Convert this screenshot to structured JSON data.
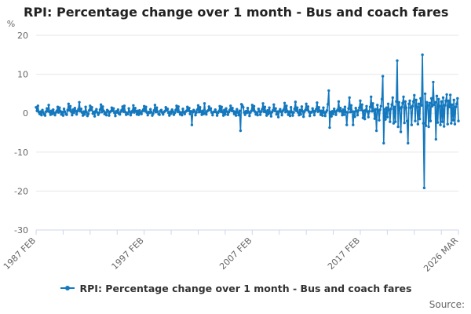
{
  "page": {
    "title": "RPI: Percentage change over 1 month - Bus and coach fares"
  },
  "legend": {
    "label": "RPI: Percentage change over 1 month - Bus and coach fares",
    "marker_icon": "line-with-dot"
  },
  "footer": {
    "source": "Source:"
  },
  "chart_data": {
    "type": "line",
    "title": "RPI: Percentage change over 1 month - Bus and coach fares",
    "unit_label": "%",
    "series_name": "RPI: Percentage change over 1 month - Bus and coach fares",
    "line_color": "#1478be",
    "grid_color": "#e6e6e6",
    "axis_color": "#ccd6eb",
    "label_color": "#666666",
    "ylim": [
      -30,
      20
    ],
    "y_ticks": [
      20,
      10,
      0,
      -10,
      -20,
      -30
    ],
    "x_start": "1987 FEB",
    "x_end": "2026 MAR",
    "x_ticks": [
      {
        "label": "1987 FEB",
        "month_index": 0
      },
      {
        "label": "1997 FEB",
        "month_index": 120
      },
      {
        "label": "2007 FEB",
        "month_index": 240
      },
      {
        "label": "2017 FEB",
        "month_index": 360
      },
      {
        "label": "2026 MAR",
        "month_index": 469
      }
    ],
    "minor_tick_interval_months": 30,
    "grid_on": true,
    "legend_position": "bottom",
    "values_start": {
      "year": 1987,
      "month": 2
    },
    "values_end": {
      "year": 2026,
      "month": 3
    },
    "values": [
      1.5,
      0.6,
      1.9,
      0.3,
      -0.2,
      0.4,
      -0.5,
      0.8,
      0.2,
      -0.3,
      -0.6,
      0.4,
      1.2,
      0.5,
      2.1,
      0.3,
      -0.4,
      0.6,
      -0.2,
      0.9,
      0.1,
      -0.5,
      0.2,
      0.6,
      1.6,
      0.2,
      1.4,
      0.5,
      -0.3,
      0.3,
      -0.6,
      1.1,
      0.4,
      -0.2,
      -0.4,
      0.8,
      2.4,
      0.7,
      1.8,
      0.4,
      -0.5,
      0.9,
      0.1,
      1.3,
      0.6,
      -0.3,
      0.5,
      1.0,
      2.8,
      0.5,
      1.1,
      0.2,
      -0.6,
      0.4,
      -0.3,
      1.6,
      0.3,
      -0.7,
      -0.2,
      0.7,
      1.9,
      0.8,
      1.5,
      -0.1,
      0.3,
      -0.8,
      0.5,
      1.0,
      0.2,
      -0.4,
      0.1,
      0.9,
      2.2,
      0.3,
      1.7,
      0.6,
      -0.2,
      0.2,
      -0.5,
      0.8,
      0.5,
      -0.6,
      0.3,
      0.5,
      1.4,
      0.6,
      1.2,
      0.1,
      -0.7,
      0.5,
      0.2,
      0.9,
      -0.1,
      -0.3,
      0.4,
      0.8,
      1.7,
      0.4,
      1.9,
      0.3,
      -0.4,
      0.1,
      -0.2,
      1.2,
      0.4,
      -0.5,
      0.2,
      0.6,
      2.0,
      0.2,
      1.3,
      0.5,
      -0.3,
      0.6,
      -0.4,
      0.7,
      0.1,
      -0.2,
      0.5,
      0.9,
      1.8,
      0.5,
      1.6,
      0.2,
      -0.5,
      0.3,
      0.1,
      1.0,
      0.3,
      -0.6,
      -0.1,
      0.7,
      2.1,
      0.3,
      1.4,
      0.4,
      -0.2,
      -0.4,
      0.6,
      0.8,
      0.2,
      -0.3,
      0.3,
      0.5,
      1.5,
      0.7,
      1.1,
      0.1,
      -0.6,
      0.4,
      -0.1,
      0.9,
      0.4,
      -0.4,
      0.1,
      0.8,
      1.9,
      0.4,
      1.7,
      0.3,
      -0.3,
      0.2,
      -0.5,
      1.1,
      0.2,
      -0.2,
      0.4,
      0.6,
      1.6,
      0.6,
      1.3,
      -0.2,
      0.5,
      -3.0,
      0.3,
      0.8,
      0.5,
      -0.5,
      0.2,
      0.9,
      2.0,
      0.3,
      1.5,
      0.4,
      -0.4,
      0.6,
      -0.2,
      2.5,
      0.1,
      -0.3,
      0.5,
      0.7,
      1.7,
      0.8,
      1.2,
      0.2,
      -0.5,
      0.3,
      0.4,
      0.9,
      0.3,
      -0.6,
      0.1,
      0.5,
      1.8,
      0.4,
      1.6,
      0.3,
      -0.6,
      0.8,
      -0.3,
      1.2,
      0.4,
      -0.4,
      0.3,
      0.8,
      1.9,
      0.6,
      1.3,
      0.5,
      -0.2,
      0.4,
      -0.6,
      1.0,
      0.2,
      -0.5,
      0.6,
      -4.5,
      2.3,
      2.0,
      1.5,
      0.2,
      -0.4,
      0.5,
      0.1,
      1.3,
      0.3,
      -0.7,
      0.2,
      0.6,
      2.1,
      0.7,
      1.8,
      0.4,
      -0.3,
      0.2,
      -0.5,
      1.1,
      0.5,
      -0.4,
      0.4,
      1.0,
      2.5,
      0.4,
      1.6,
      0.3,
      -0.6,
      0.7,
      -0.2,
      1.4,
      0.2,
      -0.8,
      0.3,
      0.7,
      2.2,
      0.6,
      1.2,
      -0.3,
      0.4,
      -1.0,
      0.5,
      1.0,
      0.4,
      -0.5,
      0.6,
      0.9,
      2.6,
      0.3,
      1.9,
      0.5,
      -0.4,
      0.4,
      -0.7,
      1.5,
      0.3,
      -0.6,
      0.2,
      1.1,
      2.9,
      0.6,
      1.4,
      0.2,
      -0.5,
      0.8,
      -0.3,
      1.7,
      0.5,
      -0.9,
      0.4,
      0.8,
      2.4,
      0.8,
      1.7,
      0.4,
      -0.7,
      0.3,
      0.2,
      1.2,
      0.6,
      -0.5,
      0.5,
      1.0,
      2.7,
      0.4,
      1.5,
      0.6,
      -0.4,
      0.6,
      -0.6,
      1.4,
      0.2,
      -0.7,
      0.3,
      0.7,
      2.3,
      5.8,
      -3.7,
      0.3,
      -0.8,
      0.5,
      -0.2,
      1.1,
      0.4,
      -0.4,
      0.6,
      0.9,
      3.0,
      0.5,
      1.3,
      0.5,
      -0.5,
      0.9,
      -0.4,
      1.6,
      0.3,
      -3.0,
      0.2,
      1.2,
      4.0,
      0.3,
      2.0,
      0.4,
      -3.0,
      0.4,
      -0.9,
      1.3,
      0.6,
      -0.5,
      0.7,
      1.4,
      3.2,
      0.8,
      2.2,
      -1.2,
      0.6,
      -1.5,
      0.8,
      1.8,
      0.4,
      -1.0,
      0.5,
      1.6,
      4.2,
      0.5,
      2.5,
      0.7,
      -1.4,
      1.0,
      -4.5,
      2.1,
      0.6,
      -1.8,
      0.9,
      1.8,
      3.6,
      9.5,
      -7.7,
      1.0,
      -1.6,
      1.4,
      -1.0,
      2.4,
      0.8,
      -2.2,
      1.1,
      2.2,
      4.0,
      -2.6,
      1.6,
      -2.2,
      3.0,
      13.5,
      -3.5,
      2.8,
      1.2,
      -4.8,
      1.5,
      2.6,
      4.2,
      -2.5,
      3.0,
      1.4,
      -2.0,
      -7.7,
      2.4,
      3.2,
      1.4,
      -3.0,
      1.8,
      3.0,
      4.6,
      -2.0,
      3.4,
      1.6,
      -2.8,
      2.4,
      -1.5,
      3.8,
      2.0,
      15.0,
      -2.6,
      -19.2,
      5.0,
      -3.2,
      2.8,
      2.0,
      -3.5,
      2.6,
      -2.0,
      3.8,
      1.8,
      8.0,
      2.2,
      2.8,
      -6.7,
      4.4,
      -2.4,
      3.6,
      1.8,
      -3.0,
      3.0,
      -2.2,
      4.0,
      -3.4,
      2.0,
      3.2,
      4.8,
      -2.8,
      3.2,
      1.6,
      4.7,
      -2.6,
      2.2,
      -1.8,
      3.4,
      -2.8,
      1.6,
      2.4,
      3.8,
      -2.0
    ]
  }
}
